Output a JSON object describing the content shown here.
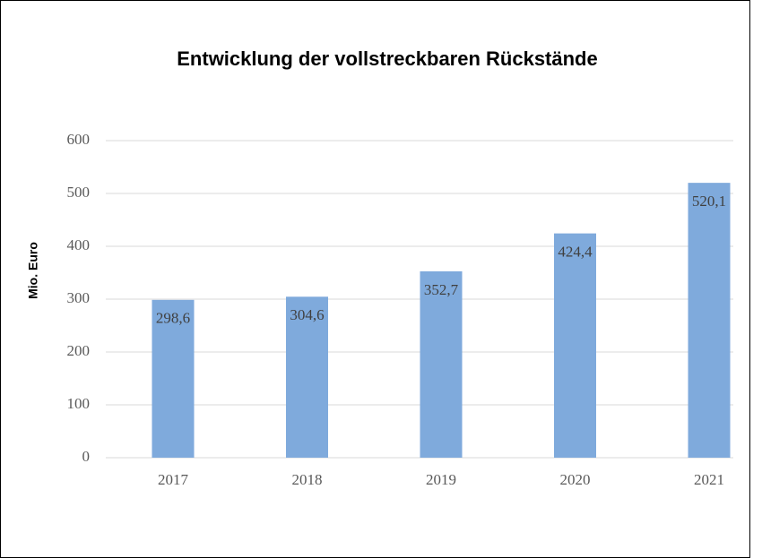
{
  "chart_data": {
    "type": "bar",
    "title": "Entwicklung der vollstreckbaren Rückstände",
    "y_label": "Mio. Euro",
    "categories": [
      "2017",
      "2018",
      "2019",
      "2020",
      "2021"
    ],
    "values": [
      298.6,
      304.6,
      352.7,
      424.4,
      520.1
    ],
    "value_labels": [
      "298,6",
      "304,6",
      "352,7",
      "424,4",
      "520,1"
    ],
    "color": "#7faadc",
    "ylim": [
      0,
      600
    ],
    "yticks": [
      0,
      100,
      200,
      300,
      400,
      500,
      600
    ],
    "grid": true
  }
}
